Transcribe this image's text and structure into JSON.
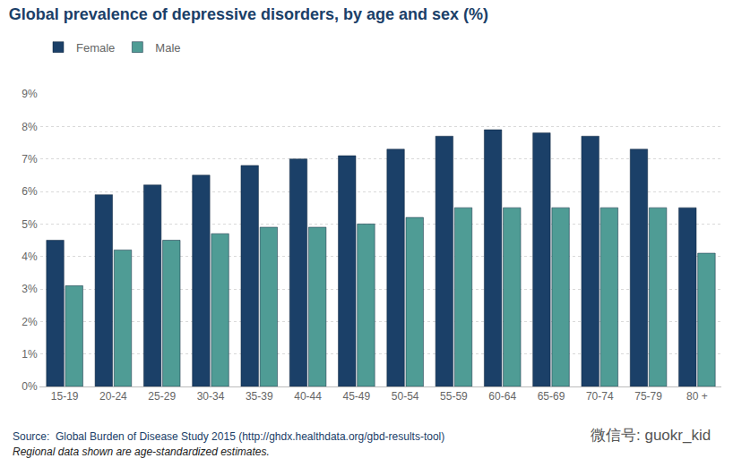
{
  "chart_data": {
    "type": "bar",
    "title": "Global prevalence of depressive disorders, by age and sex (%)",
    "categories": [
      "15-19",
      "20-24",
      "25-29",
      "30-34",
      "35-39",
      "40-44",
      "45-49",
      "50-54",
      "55-59",
      "60-64",
      "65-69",
      "70-74",
      "75-79",
      "80 +"
    ],
    "series": [
      {
        "name": "Female",
        "color": "#1b4068",
        "values": [
          4.5,
          5.9,
          6.2,
          6.5,
          6.8,
          7.0,
          7.1,
          7.3,
          7.7,
          7.9,
          7.8,
          7.7,
          7.3,
          5.5
        ]
      },
      {
        "name": "Male",
        "color": "#4f9c95",
        "values": [
          3.1,
          4.2,
          4.5,
          4.7,
          4.9,
          4.9,
          5.0,
          5.2,
          5.5,
          5.5,
          5.5,
          5.5,
          5.5,
          4.1
        ]
      }
    ],
    "ylim": [
      0,
      9
    ],
    "yticks": [
      {
        "value": 0,
        "label": "0%"
      },
      {
        "value": 1,
        "label": "1%"
      },
      {
        "value": 2,
        "label": "2%"
      },
      {
        "value": 3,
        "label": "3%"
      },
      {
        "value": 4,
        "label": "4%"
      },
      {
        "value": 5,
        "label": "5%"
      },
      {
        "value": 6,
        "label": "6%"
      },
      {
        "value": 7,
        "label": "7%"
      },
      {
        "value": 8,
        "label": "8%"
      },
      {
        "value": 9,
        "label": "9%"
      }
    ],
    "grid": true,
    "legend": "top-left",
    "annotations": [
      "Source:  Global Burden of Disease Study 2015 (http://ghdx.healthdata.org/gbd-results-tool)",
      "Regional data shown are age-standardized estimates.",
      "微信号: guokr_kid"
    ]
  }
}
